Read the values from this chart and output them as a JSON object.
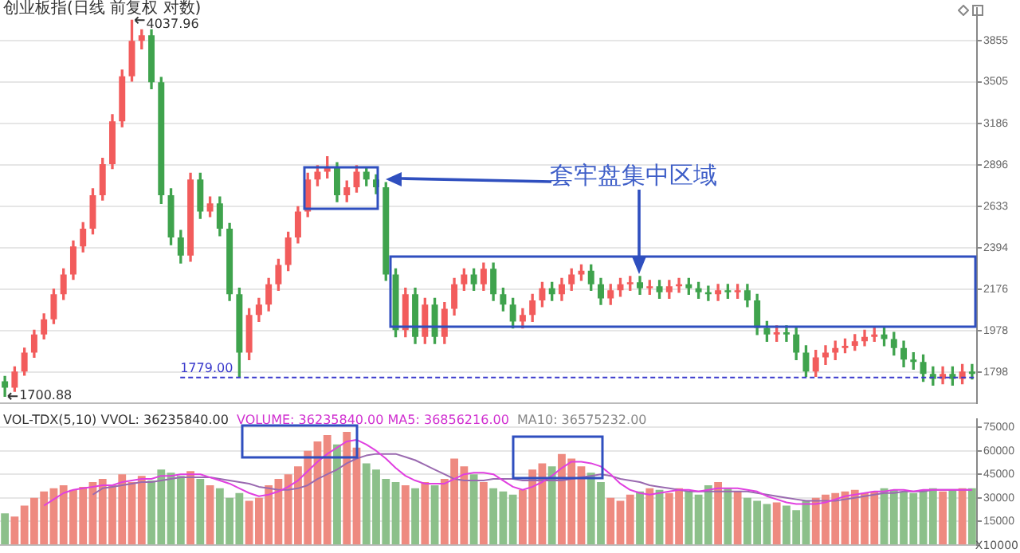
{
  "chart_data": [
    {
      "type": "candlestick",
      "title": "创业板指(日线 前复权 对数)",
      "categories": [
        null,
        null,
        null,
        null,
        null,
        null,
        null,
        null,
        null,
        null,
        null,
        null,
        null,
        null,
        null,
        null,
        null,
        null,
        null,
        null,
        null,
        null,
        null,
        null,
        null,
        null,
        null,
        null,
        null,
        null,
        null,
        null,
        null,
        null,
        null,
        null,
        null,
        null,
        null,
        null,
        null,
        null,
        null,
        null,
        null,
        null,
        null,
        null,
        null,
        null,
        null,
        null,
        null,
        null,
        null,
        null,
        null,
        null,
        null,
        null,
        null,
        null,
        null,
        null,
        null,
        null,
        null,
        null,
        null,
        null,
        null,
        null,
        null,
        null,
        null,
        null,
        null,
        null,
        null,
        null,
        null,
        null,
        null,
        null,
        null,
        null,
        null,
        null,
        null,
        null,
        null,
        null,
        null,
        null,
        null,
        null,
        null,
        null,
        null,
        null
      ],
      "ohlc": [
        [
          1760,
          1780,
          1700.88,
          1735
        ],
        [
          1735,
          1820,
          1720,
          1800
        ],
        [
          1800,
          1900,
          1785,
          1880
        ],
        [
          1880,
          1980,
          1860,
          1960
        ],
        [
          1960,
          2055,
          1940,
          2030
        ],
        [
          2030,
          2175,
          2010,
          2150
        ],
        [
          2150,
          2280,
          2125,
          2250
        ],
        [
          2250,
          2430,
          2225,
          2400
        ],
        [
          2400,
          2535,
          2370,
          2500
        ],
        [
          2500,
          2740,
          2470,
          2700
        ],
        [
          2700,
          2940,
          2670,
          2900
        ],
        [
          2900,
          3250,
          2870,
          3200
        ],
        [
          3200,
          3600,
          3160,
          3550
        ],
        [
          3550,
          4037.96,
          3510,
          3850
        ],
        [
          3850,
          3950,
          3780,
          3900
        ],
        [
          3900,
          3950,
          3450,
          3500
        ],
        [
          3500,
          3540,
          2650,
          2700
        ],
        [
          2700,
          2740,
          2410,
          2450
        ],
        [
          2450,
          2490,
          2310,
          2350
        ],
        [
          2350,
          2840,
          2320,
          2800
        ],
        [
          2800,
          2840,
          2560,
          2600
        ],
        [
          2600,
          2690,
          2570,
          2650
        ],
        [
          2650,
          2690,
          2460,
          2500
        ],
        [
          2500,
          2530,
          2120,
          2150
        ],
        [
          2150,
          2180,
          1779,
          1880
        ],
        [
          1880,
          2080,
          1850,
          2050
        ],
        [
          2050,
          2130,
          2020,
          2100
        ],
        [
          2100,
          2230,
          2070,
          2200
        ],
        [
          2200,
          2330,
          2170,
          2300
        ],
        [
          2300,
          2480,
          2270,
          2450
        ],
        [
          2450,
          2630,
          2420,
          2600
        ],
        [
          2600,
          2840,
          2570,
          2800
        ],
        [
          2800,
          2890,
          2760,
          2850
        ],
        [
          2850,
          2950,
          2810,
          2880
        ],
        [
          2880,
          2910,
          2660,
          2700
        ],
        [
          2700,
          2790,
          2660,
          2750
        ],
        [
          2750,
          2890,
          2720,
          2850
        ],
        [
          2850,
          2880,
          2760,
          2800
        ],
        [
          2800,
          2830,
          2710,
          2750
        ],
        [
          2750,
          2780,
          2220,
          2250
        ],
        [
          2250,
          2280,
          1950,
          1980
        ],
        [
          1980,
          2180,
          1950,
          2150
        ],
        [
          2150,
          2180,
          1920,
          1950
        ],
        [
          1950,
          2130,
          1920,
          2100
        ],
        [
          2100,
          2130,
          1920,
          1950
        ],
        [
          1950,
          2110,
          1920,
          2080
        ],
        [
          2080,
          2230,
          2050,
          2200
        ],
        [
          2200,
          2280,
          2170,
          2250
        ],
        [
          2250,
          2280,
          2170,
          2200
        ],
        [
          2200,
          2310,
          2170,
          2280
        ],
        [
          2280,
          2310,
          2120,
          2150
        ],
        [
          2150,
          2180,
          2070,
          2100
        ],
        [
          2100,
          2130,
          1990,
          2020
        ],
        [
          2020,
          2080,
          1990,
          2050
        ],
        [
          2050,
          2150,
          2020,
          2120
        ],
        [
          2120,
          2210,
          2090,
          2180
        ],
        [
          2180,
          2210,
          2120,
          2150
        ],
        [
          2150,
          2230,
          2120,
          2200
        ],
        [
          2200,
          2280,
          2170,
          2250
        ],
        [
          2250,
          2300,
          2220,
          2270
        ],
        [
          2270,
          2300,
          2170,
          2200
        ],
        [
          2200,
          2230,
          2100,
          2130
        ],
        [
          2130,
          2200,
          2100,
          2170
        ],
        [
          2170,
          2230,
          2140,
          2200
        ],
        [
          2200,
          2240,
          2170,
          2210
        ],
        [
          2210,
          2240,
          2150,
          2180
        ],
        [
          2180,
          2220,
          2150,
          2190
        ],
        [
          2190,
          2220,
          2130,
          2160
        ],
        [
          2160,
          2220,
          2130,
          2190
        ],
        [
          2190,
          2230,
          2160,
          2200
        ],
        [
          2200,
          2230,
          2150,
          2180
        ],
        [
          2180,
          2210,
          2130,
          2160
        ],
        [
          2160,
          2190,
          2120,
          2150
        ],
        [
          2150,
          2200,
          2120,
          2170
        ],
        [
          2170,
          2200,
          2130,
          2160
        ],
        [
          2160,
          2200,
          2130,
          2170
        ],
        [
          2170,
          2200,
          2090,
          2120
        ],
        [
          2120,
          2150,
          1960,
          1990
        ],
        [
          1990,
          2020,
          1930,
          1960
        ],
        [
          1960,
          2000,
          1930,
          1970
        ],
        [
          1970,
          2000,
          1930,
          1960
        ],
        [
          1960,
          1990,
          1850,
          1880
        ],
        [
          1880,
          1910,
          1780,
          1800
        ],
        [
          1800,
          1890,
          1780,
          1860
        ],
        [
          1860,
          1910,
          1830,
          1880
        ],
        [
          1880,
          1930,
          1850,
          1900
        ],
        [
          1900,
          1940,
          1880,
          1910
        ],
        [
          1910,
          1960,
          1890,
          1930
        ],
        [
          1930,
          1980,
          1910,
          1950
        ],
        [
          1950,
          1990,
          1930,
          1960
        ],
        [
          1960,
          1990,
          1910,
          1940
        ],
        [
          1940,
          1970,
          1870,
          1900
        ],
        [
          1900,
          1930,
          1820,
          1850
        ],
        [
          1850,
          1880,
          1810,
          1840
        ],
        [
          1840,
          1870,
          1760,
          1790
        ],
        [
          1790,
          1820,
          1745,
          1770
        ],
        [
          1770,
          1820,
          1750,
          1790
        ],
        [
          1790,
          1820,
          1745,
          1770
        ],
        [
          1770,
          1830,
          1750,
          1800
        ],
        [
          1800,
          1830,
          1770,
          1790
        ]
      ],
      "colors": [
        "#3fa34d",
        "#f25c5c",
        "#f25c5c",
        "#f25c5c",
        "#f25c5c",
        "#f25c5c",
        "#f25c5c",
        "#f25c5c",
        "#f25c5c",
        "#f25c5c",
        "#f25c5c",
        "#f25c5c",
        "#f25c5c",
        "#f25c5c",
        "#f25c5c",
        "#3fa34d",
        "#3fa34d",
        "#3fa34d",
        "#3fa34d",
        "#f25c5c",
        "#3fa34d",
        "#f25c5c",
        "#3fa34d",
        "#3fa34d",
        "#3fa34d",
        "#f25c5c",
        "#f25c5c",
        "#f25c5c",
        "#f25c5c",
        "#f25c5c",
        "#f25c5c",
        "#f25c5c",
        "#f25c5c",
        "#f25c5c",
        "#3fa34d",
        "#f25c5c",
        "#f25c5c",
        "#3fa34d",
        "#3fa34d",
        "#3fa34d",
        "#3fa34d",
        "#f25c5c",
        "#3fa34d",
        "#f25c5c",
        "#3fa34d",
        "#f25c5c",
        "#f25c5c",
        "#f25c5c",
        "#3fa34d",
        "#f25c5c",
        "#3fa34d",
        "#3fa34d",
        "#3fa34d",
        "#f25c5c",
        "#f25c5c",
        "#f25c5c",
        "#3fa34d",
        "#f25c5c",
        "#f25c5c",
        "#f25c5c",
        "#3fa34d",
        "#3fa34d",
        "#f25c5c",
        "#f25c5c",
        "#f25c5c",
        "#3fa34d",
        "#f25c5c",
        "#3fa34d",
        "#f25c5c",
        "#f25c5c",
        "#3fa34d",
        "#3fa34d",
        "#3fa34d",
        "#f25c5c",
        "#3fa34d",
        "#f25c5c",
        "#3fa34d",
        "#3fa34d",
        "#3fa34d",
        "#f25c5c",
        "#3fa34d",
        "#3fa34d",
        "#3fa34d",
        "#f25c5c",
        "#f25c5c",
        "#f25c5c",
        "#f25c5c",
        "#f25c5c",
        "#f25c5c",
        "#f25c5c",
        "#3fa34d",
        "#3fa34d",
        "#3fa34d",
        "#3fa34d",
        "#3fa34d",
        "#3fa34d",
        "#f25c5c",
        "#3fa34d",
        "#f25c5c",
        "#3fa34d"
      ],
      "log": true,
      "ylim": [
        1675,
        4150
      ],
      "yticks": [
        1798,
        1978,
        2176,
        2394,
        2633,
        2896,
        3186,
        3505,
        3855
      ],
      "grid": "y",
      "tick_labels": "y",
      "ref_lines": [
        {
          "axis": "y",
          "value": 1779,
          "label": "1779.00",
          "color": "#3a3acc",
          "line_style": "dashed"
        }
      ],
      "annotations": [
        "4037.96",
        "1700.88",
        "套牢盘集中区域"
      ]
    },
    {
      "type": "bar",
      "title": "VOL-TDX(5,10) VVOL: 36235840.00",
      "ylabel": "X10000",
      "categories": [
        null,
        null,
        null,
        null,
        null,
        null,
        null,
        null,
        null,
        null,
        null,
        null,
        null,
        null,
        null,
        null,
        null,
        null,
        null,
        null,
        null,
        null,
        null,
        null,
        null,
        null,
        null,
        null,
        null,
        null,
        null,
        null,
        null,
        null,
        null,
        null,
        null,
        null,
        null,
        null,
        null,
        null,
        null,
        null,
        null,
        null,
        null,
        null,
        null,
        null,
        null,
        null,
        null,
        null,
        null,
        null,
        null,
        null,
        null,
        null,
        null,
        null,
        null,
        null,
        null,
        null,
        null,
        null,
        null,
        null,
        null,
        null,
        null,
        null,
        null,
        null,
        null,
        null,
        null,
        null,
        null,
        null,
        null,
        null,
        null,
        null,
        null,
        null,
        null,
        null,
        null,
        null,
        null,
        null,
        null,
        null,
        null,
        null,
        null,
        null
      ],
      "series": [
        {
          "type": "bar",
          "values": [
            20000,
            18000,
            25000,
            30000,
            34000,
            36000,
            38000,
            35000,
            37000,
            40000,
            42000,
            38000,
            45000,
            40000,
            44000,
            41000,
            48000,
            46000,
            44000,
            47000,
            42000,
            38000,
            36000,
            30000,
            33000,
            28000,
            30000,
            38000,
            42000,
            45000,
            50000,
            60000,
            66000,
            70000,
            64000,
            72000,
            62000,
            52000,
            48000,
            42000,
            40000,
            38000,
            36000,
            40000,
            38000,
            42000,
            55000,
            50000,
            45000,
            40000,
            36000,
            34000,
            32000,
            35000,
            48000,
            52000,
            50000,
            58000,
            55000,
            50000,
            46000,
            40000,
            30000,
            28000,
            32000,
            34000,
            36000,
            35000,
            33000,
            36000,
            34000,
            32000,
            38000,
            40000,
            36000,
            34000,
            30000,
            28000,
            26000,
            27000,
            25000,
            22000,
            28000,
            30000,
            32000,
            33000,
            34000,
            35000,
            33000,
            34000,
            36000,
            35000,
            34000,
            33000,
            35000,
            36000,
            34000,
            35000,
            36000,
            36000
          ],
          "colors": [
            "#8cc08a",
            "#ee8a80",
            "#ee8a80",
            "#ee8a80",
            "#ee8a80",
            "#ee8a80",
            "#ee8a80",
            "#ee8a80",
            "#ee8a80",
            "#ee8a80",
            "#ee8a80",
            "#ee8a80",
            "#ee8a80",
            "#ee8a80",
            "#ee8a80",
            "#8cc08a",
            "#8cc08a",
            "#8cc08a",
            "#8cc08a",
            "#ee8a80",
            "#8cc08a",
            "#ee8a80",
            "#8cc08a",
            "#8cc08a",
            "#8cc08a",
            "#ee8a80",
            "#ee8a80",
            "#ee8a80",
            "#ee8a80",
            "#ee8a80",
            "#ee8a80",
            "#ee8a80",
            "#ee8a80",
            "#ee8a80",
            "#8cc08a",
            "#ee8a80",
            "#ee8a80",
            "#8cc08a",
            "#8cc08a",
            "#8cc08a",
            "#8cc08a",
            "#ee8a80",
            "#8cc08a",
            "#ee8a80",
            "#8cc08a",
            "#ee8a80",
            "#ee8a80",
            "#ee8a80",
            "#8cc08a",
            "#ee8a80",
            "#8cc08a",
            "#8cc08a",
            "#8cc08a",
            "#ee8a80",
            "#ee8a80",
            "#ee8a80",
            "#8cc08a",
            "#ee8a80",
            "#ee8a80",
            "#ee8a80",
            "#8cc08a",
            "#8cc08a",
            "#ee8a80",
            "#ee8a80",
            "#ee8a80",
            "#8cc08a",
            "#ee8a80",
            "#8cc08a",
            "#ee8a80",
            "#ee8a80",
            "#8cc08a",
            "#8cc08a",
            "#8cc08a",
            "#ee8a80",
            "#8cc08a",
            "#ee8a80",
            "#8cc08a",
            "#8cc08a",
            "#8cc08a",
            "#ee8a80",
            "#8cc08a",
            "#8cc08a",
            "#8cc08a",
            "#ee8a80",
            "#ee8a80",
            "#ee8a80",
            "#ee8a80",
            "#ee8a80",
            "#ee8a80",
            "#ee8a80",
            "#8cc08a",
            "#8cc08a",
            "#8cc08a",
            "#8cc08a",
            "#8cc08a",
            "#8cc08a",
            "#ee8a80",
            "#8cc08a",
            "#ee8a80",
            "#8cc08a"
          ]
        },
        {
          "type": "line",
          "color": "#e040e0",
          "values": [
            null,
            null,
            null,
            null,
            25000,
            29000,
            33000,
            35000,
            36000,
            37000,
            38000,
            38000,
            40000,
            41000,
            42000,
            42000,
            44000,
            44000,
            45000,
            45000,
            45000,
            43000,
            41000,
            39000,
            36000,
            33000,
            31000,
            32000,
            34000,
            37000,
            41000,
            47000,
            53000,
            58000,
            62000,
            66000,
            67000,
            64000,
            60000,
            55000,
            49000,
            44000,
            41000,
            39000,
            39000,
            39000,
            42000,
            45000,
            46000,
            46000,
            45000,
            41000,
            37000,
            35000,
            37000,
            40000,
            44000,
            49000,
            53000,
            53000,
            52000,
            50000,
            45000,
            39000,
            35000,
            33000,
            32000,
            33000,
            34000,
            35000,
            35000,
            34000,
            35000,
            36000,
            36000,
            36000,
            35000,
            34000,
            31000,
            29000,
            27000,
            26000,
            26000,
            26000,
            27000,
            29000,
            31000,
            32000,
            33000,
            34000,
            34000,
            35000,
            35000,
            34000,
            35000,
            35000,
            35000,
            35000,
            35000,
            35000
          ]
        },
        {
          "type": "line",
          "color": "#9a6ab0",
          "values": [
            null,
            null,
            null,
            null,
            null,
            null,
            null,
            null,
            null,
            32000,
            36000,
            37000,
            38000,
            39000,
            40000,
            40000,
            41000,
            42000,
            43000,
            43000,
            43000,
            43000,
            42000,
            41000,
            40000,
            39000,
            37000,
            36000,
            35000,
            35000,
            36000,
            38000,
            42000,
            45000,
            48000,
            52000,
            55000,
            57000,
            58000,
            58000,
            58000,
            56000,
            54000,
            51000,
            48000,
            45000,
            42000,
            41000,
            41000,
            41000,
            42000,
            42000,
            42000,
            41000,
            41000,
            41000,
            41000,
            41000,
            42000,
            43000,
            44000,
            45000,
            44000,
            42000,
            41000,
            40000,
            38000,
            37000,
            36000,
            35000,
            34000,
            34000,
            34000,
            34000,
            34000,
            34000,
            34000,
            33000,
            32000,
            31000,
            30000,
            29000,
            28000,
            28000,
            28000,
            28000,
            29000,
            30000,
            31000,
            32000,
            33000,
            33000,
            34000,
            34000,
            34000,
            35000,
            35000,
            35000,
            35000,
            35000
          ]
        }
      ],
      "ylim": [
        0,
        80000
      ],
      "yticks": [
        15000,
        30000,
        45000,
        60000,
        75000
      ],
      "grid": "y",
      "tick_labels": "y",
      "annotations": [
        "VOLUME: 36235840.00 MA5: 36856216.00",
        "MA10: 36575232.00"
      ]
    }
  ]
}
